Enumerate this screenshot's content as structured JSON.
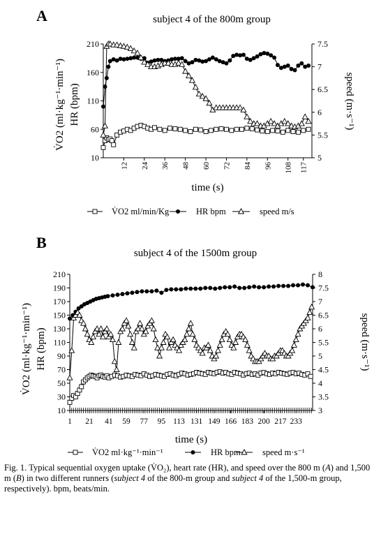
{
  "chart_data": [
    {
      "panel_letter": "A",
      "type": "line",
      "title": "subject 4 of the 800m group",
      "xlabel": "time (s)",
      "ylabel_lines": [
        "V̇O2 (ml·kg⁻¹·min⁻¹)",
        "HR (bpm)"
      ],
      "y2label": "speed (m·s⁻¹)",
      "x_range": [
        0,
        122
      ],
      "x_ticks": [
        "12",
        "24",
        "36",
        "48",
        "60",
        "72",
        "84",
        "96",
        "108",
        "117"
      ],
      "y_range": [
        10,
        210
      ],
      "y_ticks": [
        "10",
        "60",
        "110",
        "160",
        "210"
      ],
      "y2_range": [
        5,
        7.5
      ],
      "y2_ticks": [
        "5",
        "5.5",
        "6",
        "6.5",
        "7",
        "7.5"
      ],
      "legend": [
        "V̇O2 ml/min/Kg",
        "HR bpm",
        "speed m/s"
      ],
      "series": [
        {
          "name": "V̇O2 ml/min/Kg",
          "axis": "left",
          "marker": "square",
          "x": [
            0,
            1,
            2,
            3,
            4,
            5,
            6,
            8,
            10,
            12,
            14,
            16,
            18,
            20,
            22,
            24,
            26,
            28,
            30,
            33,
            36,
            39,
            42,
            45,
            48,
            51,
            54,
            57,
            60,
            63,
            66,
            69,
            72,
            75,
            78,
            81,
            84,
            87,
            90,
            93,
            96,
            99,
            102,
            105,
            108,
            111,
            114,
            117,
            120
          ],
          "y": [
            28,
            40,
            45,
            42,
            43,
            40,
            33,
            50,
            55,
            57,
            60,
            58,
            62,
            65,
            67,
            65,
            62,
            60,
            63,
            60,
            58,
            62,
            61,
            60,
            58,
            56,
            60,
            59,
            56,
            58,
            60,
            61,
            60,
            58,
            60,
            60,
            62,
            61,
            59,
            57,
            56,
            58,
            57,
            55,
            58,
            56,
            55,
            58,
            60
          ]
        },
        {
          "name": "HR bpm",
          "axis": "left",
          "marker": "circle",
          "x": [
            0,
            1,
            2,
            3,
            4,
            6,
            8,
            10,
            12,
            14,
            16,
            18,
            20,
            22,
            24,
            26,
            28,
            30,
            32,
            34,
            36,
            38,
            40,
            42,
            44,
            46,
            48,
            50,
            52,
            54,
            56,
            58,
            60,
            62,
            64,
            66,
            68,
            70,
            72,
            74,
            76,
            78,
            80,
            82,
            84,
            86,
            88,
            90,
            92,
            94,
            96,
            98,
            100,
            102,
            104,
            106,
            108,
            110,
            112,
            114,
            116,
            118,
            120
          ],
          "y": [
            100,
            135,
            150,
            170,
            180,
            183,
            181,
            184,
            183,
            184,
            185,
            186,
            186,
            184,
            185,
            177,
            179,
            181,
            182,
            182,
            180,
            181,
            183,
            184,
            184,
            185,
            180,
            176,
            178,
            182,
            181,
            179,
            180,
            183,
            186,
            183,
            180,
            178,
            176,
            181,
            189,
            191,
            190,
            191,
            184,
            182,
            185,
            188,
            192,
            194,
            193,
            190,
            186,
            173,
            168,
            170,
            172,
            166,
            164,
            172,
            176,
            170,
            172
          ]
        },
        {
          "name": "speed m/s",
          "axis": "right",
          "marker": "triangle",
          "x": [
            0,
            1,
            2,
            3,
            4,
            6,
            8,
            10,
            12,
            14,
            16,
            18,
            20,
            22,
            24,
            26,
            28,
            30,
            32,
            34,
            36,
            38,
            40,
            42,
            44,
            46,
            48,
            50,
            52,
            54,
            56,
            58,
            60,
            62,
            64,
            66,
            68,
            70,
            72,
            74,
            76,
            78,
            80,
            82,
            84,
            86,
            88,
            90,
            92,
            94,
            96,
            98,
            100,
            102,
            104,
            106,
            108,
            110,
            112,
            114,
            116,
            118,
            120
          ],
          "y": [
            5.5,
            5.7,
            7.45,
            7.5,
            7.5,
            7.48,
            7.48,
            7.46,
            7.45,
            7.43,
            7.4,
            7.35,
            7.3,
            7.2,
            7.1,
            7.05,
            7.0,
            7.0,
            7.02,
            7.05,
            7.08,
            7.08,
            7.05,
            7.05,
            7.08,
            7.05,
            6.9,
            6.8,
            6.7,
            6.55,
            6.4,
            6.35,
            6.3,
            6.2,
            6.05,
            6.1,
            6.1,
            6.1,
            6.1,
            6.1,
            6.1,
            6.1,
            6.1,
            6.05,
            5.9,
            5.8,
            5.75,
            5.75,
            5.7,
            5.7,
            5.75,
            5.8,
            5.75,
            5.7,
            5.75,
            5.8,
            5.75,
            5.7,
            5.68,
            5.7,
            5.75,
            5.9,
            5.8
          ]
        }
      ]
    },
    {
      "panel_letter": "B",
      "type": "line",
      "title": "subject 4 of the 1500m group",
      "xlabel": "time (s)",
      "ylabel_lines": [
        "V̇O2 (ml·kg⁻¹·min⁻¹)",
        "HR (bpm)"
      ],
      "y2label": "speed (m·s⁻¹)",
      "x_range": [
        1,
        250
      ],
      "x_ticks": [
        "1",
        "21",
        "41",
        "59",
        "77",
        "95",
        "113",
        "131",
        "149",
        "166",
        "183",
        "200",
        "217",
        "233"
      ],
      "y_range": [
        10,
        210
      ],
      "y_ticks": [
        "10",
        "30",
        "50",
        "70",
        "90",
        "110",
        "130",
        "150",
        "170",
        "190",
        "210"
      ],
      "y2_range": [
        3,
        8
      ],
      "y2_ticks": [
        "3",
        "3.5",
        "4",
        "4.5",
        "5",
        "5.5",
        "6",
        "6.5",
        "7",
        "7.5",
        "8"
      ],
      "legend": [
        "V̇O2 ml·kg⁻¹·min⁻¹",
        "HR bpm",
        "speed m·s⁻¹"
      ],
      "series": [
        {
          "name": "V̇O2 ml·kg⁻¹·min⁻¹",
          "axis": "left",
          "marker": "square",
          "x": [
            1,
            3,
            5,
            7,
            9,
            11,
            13,
            15,
            17,
            19,
            21,
            23,
            25,
            27,
            29,
            31,
            33,
            35,
            37,
            39,
            41,
            44,
            47,
            50,
            53,
            56,
            59,
            62,
            65,
            68,
            71,
            74,
            77,
            80,
            83,
            86,
            89,
            92,
            95,
            98,
            101,
            104,
            107,
            110,
            113,
            116,
            119,
            122,
            125,
            128,
            131,
            134,
            137,
            140,
            143,
            146,
            149,
            152,
            155,
            158,
            161,
            164,
            167,
            170,
            173,
            176,
            179,
            182,
            185,
            188,
            191,
            194,
            197,
            200,
            203,
            206,
            209,
            212,
            215,
            218,
            221,
            224,
            227,
            230,
            233,
            236,
            239,
            242,
            245,
            248
          ],
          "y": [
            22,
            28,
            32,
            30,
            35,
            40,
            45,
            52,
            55,
            58,
            60,
            62,
            61,
            60,
            58,
            61,
            62,
            60,
            59,
            61,
            58,
            60,
            62,
            61,
            59,
            60,
            62,
            61,
            60,
            63,
            62,
            61,
            64,
            62,
            60,
            61,
            63,
            62,
            61,
            60,
            63,
            64,
            62,
            61,
            63,
            65,
            64,
            62,
            63,
            64,
            66,
            65,
            64,
            63,
            66,
            65,
            64,
            66,
            67,
            65,
            66,
            64,
            63,
            66,
            65,
            64,
            62,
            64,
            65,
            63,
            64,
            62,
            65,
            66,
            64,
            63,
            65,
            64,
            66,
            65,
            64,
            63,
            65,
            66,
            64,
            65,
            63,
            62,
            64,
            60
          ]
        },
        {
          "name": "HR bpm",
          "axis": "left",
          "marker": "circle",
          "x": [
            1,
            4,
            7,
            10,
            13,
            16,
            19,
            22,
            25,
            28,
            31,
            34,
            37,
            40,
            45,
            50,
            55,
            60,
            65,
            70,
            75,
            80,
            85,
            90,
            95,
            100,
            105,
            110,
            115,
            120,
            125,
            130,
            135,
            140,
            145,
            150,
            155,
            160,
            165,
            170,
            175,
            180,
            185,
            190,
            195,
            200,
            205,
            210,
            215,
            220,
            225,
            230,
            235,
            240,
            245,
            250
          ],
          "y": [
            145,
            150,
            155,
            160,
            163,
            166,
            168,
            170,
            172,
            174,
            175,
            176,
            177,
            178,
            179,
            180,
            181,
            182,
            183,
            184,
            185,
            185,
            185,
            186,
            183,
            187,
            188,
            188,
            188,
            189,
            189,
            189,
            189,
            190,
            190,
            189,
            190,
            191,
            191,
            192,
            190,
            190,
            191,
            192,
            191,
            191,
            192,
            192,
            193,
            193,
            193,
            194,
            194,
            195,
            194,
            191
          ]
        },
        {
          "name": "speed m·s⁻¹",
          "axis": "right",
          "marker": "triangle",
          "x": [
            1,
            3,
            5,
            7,
            9,
            11,
            13,
            15,
            17,
            19,
            21,
            23,
            25,
            27,
            29,
            31,
            33,
            35,
            37,
            39,
            41,
            43,
            45,
            47,
            49,
            51,
            53,
            55,
            57,
            59,
            61,
            63,
            65,
            67,
            69,
            71,
            73,
            75,
            77,
            79,
            81,
            83,
            85,
            87,
            89,
            91,
            93,
            95,
            97,
            99,
            101,
            103,
            105,
            107,
            109,
            111,
            113,
            115,
            117,
            119,
            121,
            123,
            125,
            127,
            129,
            131,
            133,
            135,
            137,
            139,
            141,
            143,
            145,
            147,
            149,
            151,
            153,
            155,
            157,
            159,
            161,
            163,
            165,
            167,
            169,
            171,
            173,
            175,
            177,
            179,
            181,
            183,
            185,
            187,
            189,
            191,
            193,
            195,
            197,
            199,
            201,
            203,
            205,
            207,
            209,
            211,
            213,
            215,
            217,
            219,
            221,
            223,
            225,
            227,
            229,
            231,
            233,
            235,
            237,
            239,
            241,
            243,
            245,
            247,
            249
          ],
          "y": [
            4.2,
            5.2,
            6.4,
            6.5,
            6.6,
            6.5,
            6.3,
            6.2,
            6.0,
            5.8,
            5.6,
            5.5,
            5.7,
            5.9,
            6.0,
            5.8,
            6.0,
            5.7,
            5.9,
            6.0,
            5.7,
            5.8,
            5.6,
            4.8,
            4.5,
            5.5,
            5.9,
            6.0,
            6.2,
            6.3,
            6.1,
            5.8,
            5.5,
            5.3,
            5.9,
            6.0,
            6.2,
            6.0,
            5.8,
            5.9,
            6.1,
            6.2,
            6.3,
            6.0,
            5.6,
            5.3,
            5.0,
            5.3,
            5.5,
            5.8,
            5.7,
            5.3,
            5.5,
            5.6,
            5.4,
            5.3,
            5.2,
            5.4,
            5.5,
            5.6,
            5.8,
            6.0,
            6.2,
            5.8,
            5.6,
            5.4,
            5.3,
            5.2,
            5.1,
            5.3,
            5.3,
            5.4,
            5.2,
            5.0,
            4.9,
            5.0,
            5.2,
            5.4,
            5.6,
            5.8,
            5.9,
            5.8,
            5.6,
            5.4,
            5.3,
            5.5,
            5.7,
            5.8,
            5.8,
            5.7,
            5.6,
            5.4,
            5.2,
            5.0,
            4.9,
            4.8,
            4.8,
            4.8,
            4.9,
            5.0,
            5.1,
            5.0,
            5.0,
            4.9,
            4.9,
            5.0,
            5.0,
            5.1,
            5.2,
            5.2,
            5.1,
            5.0,
            5.0,
            5.1,
            5.2,
            5.4,
            5.6,
            5.8,
            6.0,
            6.1,
            6.2,
            6.3,
            6.4,
            6.6,
            6.8
          ]
        }
      ]
    }
  ],
  "caption": {
    "parts": [
      {
        "t": "Fig. 1. Typical sequential oxygen uptake (V̇O₂), heart rate (HR), and speed over the 800 m (",
        "i": false
      },
      {
        "t": "A",
        "i": true
      },
      {
        "t": ") and 1,500 m (",
        "i": false
      },
      {
        "t": "B",
        "i": true
      },
      {
        "t": ") in two different runners (",
        "i": false
      },
      {
        "t": "subject 4",
        "i": true
      },
      {
        "t": " of the 800-m group and ",
        "i": false
      },
      {
        "t": "subject 4",
        "i": true
      },
      {
        "t": " of the 1,500-m group, respectively). bpm, beats/min.",
        "i": false
      }
    ]
  }
}
